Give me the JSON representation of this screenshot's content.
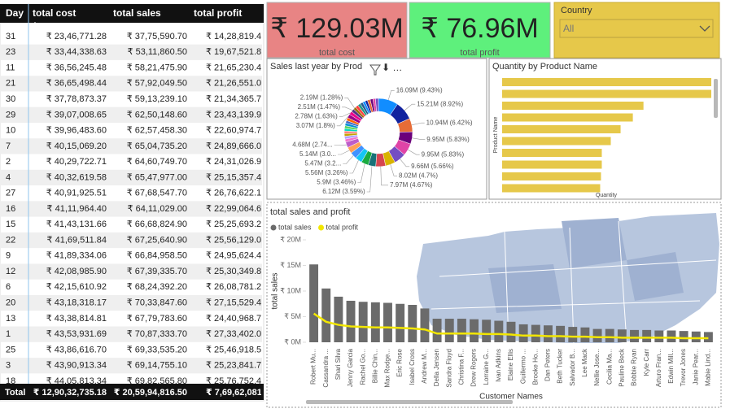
{
  "table": {
    "columns": [
      "Day",
      "total cost",
      "total sales",
      "total profit"
    ],
    "rows": [
      [
        31,
        "₹ 23,46,771.28",
        "₹ 37,75,590.70",
        "₹ 14,28,819.4"
      ],
      [
        23,
        "₹ 33,44,338.63",
        "₹ 53,11,860.50",
        "₹ 19,67,521.8"
      ],
      [
        11,
        "₹ 36,56,245.48",
        "₹ 58,21,475.90",
        "₹ 21,65,230.4"
      ],
      [
        21,
        "₹ 36,65,498.44",
        "₹ 57,92,049.50",
        "₹ 21,26,551.0"
      ],
      [
        30,
        "₹ 37,78,873.37",
        "₹ 59,13,239.10",
        "₹ 21,34,365.7"
      ],
      [
        29,
        "₹ 39,07,008.65",
        "₹ 62,50,148.60",
        "₹ 23,43,139.9"
      ],
      [
        10,
        "₹ 39,96,483.60",
        "₹ 62,57,458.30",
        "₹ 22,60,974.7"
      ],
      [
        7,
        "₹ 40,15,069.20",
        "₹ 65,04,735.20",
        "₹ 24,89,666.0"
      ],
      [
        2,
        "₹ 40,29,722.71",
        "₹ 64,60,749.70",
        "₹ 24,31,026.9"
      ],
      [
        4,
        "₹ 40,32,619.58",
        "₹ 65,47,977.00",
        "₹ 25,15,357.4"
      ],
      [
        27,
        "₹ 40,91,925.51",
        "₹ 67,68,547.70",
        "₹ 26,76,622.1"
      ],
      [
        16,
        "₹ 41,11,964.40",
        "₹ 64,11,029.00",
        "₹ 22,99,064.6"
      ],
      [
        15,
        "₹ 41,43,131.66",
        "₹ 66,68,824.90",
        "₹ 25,25,693.2"
      ],
      [
        22,
        "₹ 41,69,511.84",
        "₹ 67,25,640.90",
        "₹ 25,56,129.0"
      ],
      [
        9,
        "₹ 41,89,334.06",
        "₹ 66,84,958.50",
        "₹ 24,95,624.4"
      ],
      [
        12,
        "₹ 42,08,985.90",
        "₹ 67,39,335.70",
        "₹ 25,30,349.8"
      ],
      [
        6,
        "₹ 42,15,610.92",
        "₹ 68,24,392.20",
        "₹ 26,08,781.2"
      ],
      [
        20,
        "₹ 43,18,318.17",
        "₹ 70,33,847.60",
        "₹ 27,15,529.4"
      ],
      [
        13,
        "₹ 43,38,814.81",
        "₹ 67,79,783.60",
        "₹ 24,40,968.7"
      ],
      [
        1,
        "₹ 43,53,931.69",
        "₹ 70,87,333.70",
        "₹ 27,33,402.0"
      ],
      [
        25,
        "₹ 43,86,616.70",
        "₹ 69,33,535.20",
        "₹ 25,46,918.5"
      ],
      [
        3,
        "₹ 43,90,913.34",
        "₹ 69,14,755.10",
        "₹ 25,23,841.7"
      ],
      [
        18,
        "₹ 44,05,813.34",
        "₹ 69,82,565.80",
        "₹ 25,76,752.4"
      ]
    ],
    "total": [
      "Total",
      "₹ 12,90,32,735.18",
      "₹ 20,59,94,816.50",
      "₹ 7,69,62,081.3"
    ]
  },
  "cards": [
    {
      "value": "₹ 129.03M",
      "label": "total cost",
      "color": "#e88484"
    },
    {
      "value": "₹ 76.96M",
      "label": "total profit",
      "color": "#5ef07c"
    }
  ],
  "slicer": {
    "title": "Country",
    "selected": "All"
  },
  "chart_data": [
    {
      "type": "donut",
      "title": "Sales last year by Prod",
      "values": [
        16.09,
        15.21,
        10.94,
        9.95,
        9.95,
        9.66,
        8.02,
        7.97,
        6.12,
        5.9,
        5.56,
        5.47,
        5.14,
        4.68,
        2.4,
        2.3,
        2.2,
        2.1,
        2.0,
        2.3,
        2.2,
        2.1,
        2.4,
        3.07,
        2.78,
        2.51,
        2.19,
        2.4,
        2.3,
        2.2,
        2.1,
        2.0,
        2.3,
        2.2,
        2.1,
        2.4
      ],
      "value_labels": [
        "16.09M (9.43%)",
        "15.21M (8.92%)",
        "10.94M (6.42%)",
        "9.95M (5.83%)",
        "9.95M (5.83%)",
        "9.66M (5.66%)",
        "8.02M (4.7%)",
        "7.97M (4.67%)",
        "6.12M (3.59%)",
        "5.9M (3.46%)",
        "5.56M (3.26%)",
        "5.47M (3.2...",
        "5.14M (3.0...",
        "4.68M (2.74...",
        null,
        null,
        null,
        null,
        null,
        null,
        null,
        null,
        null,
        "3.07M (1.8%)",
        "2.78M (1.63%)",
        "2.51M (1.47%)",
        "2.19M (1.28%)",
        null,
        null,
        null,
        null,
        null,
        null,
        null,
        null,
        null
      ],
      "colors": [
        "#118DFF",
        "#12239E",
        "#E66C37",
        "#6B007B",
        "#E044A7",
        "#744EC2",
        "#D9B300",
        "#D64550",
        "#197278",
        "#1AAB40",
        "#15C6F4",
        "#4092FF",
        "#FFA058",
        "#BE5DC9",
        "#F472D0",
        "#B5A1FF",
        "#C4A200",
        "#FF8080",
        "#00DBBC",
        "#5BD667",
        "#0091D5",
        "#4668C5",
        "#FF6300",
        "#99008A",
        "#EC008C",
        "#533285",
        "#99700A",
        "#FF4141",
        "#1F9A85",
        "#255A8F",
        "#118DFF",
        "#12239E",
        "#E66C37",
        "#6B007B",
        "#E044A7",
        "#744EC2"
      ]
    },
    {
      "type": "hbar",
      "title": "Quantity by Product Name",
      "x_label": "Quantity",
      "y_label": "Product Name",
      "categories": [
        null,
        null,
        null,
        null,
        null,
        null,
        null,
        null,
        null,
        null
      ],
      "values": [
        256,
        256,
        173,
        160,
        145,
        133,
        122,
        122,
        121,
        120
      ],
      "color": "#e6c84a",
      "xlim": [
        0,
        260
      ]
    },
    {
      "type": "combo",
      "title": "total sales and profit",
      "x_label": "Customer Names",
      "y_label": "total sales",
      "categories": [
        "Robert Mu...",
        "Cassandra ...",
        "Shari Silva",
        "Jenny Garcia",
        "Rachel Go...",
        "Billie Chin...",
        "Max Rodge...",
        "Eric Rose",
        "Isabel Cross",
        "Andrew M...",
        "Della Jensen",
        "Sandra Floyd",
        "Christina F...",
        "Drew Rogers",
        "Lorraine G...",
        "Ivan Adkins",
        "Elaine Ellis",
        "Guillermo ...",
        "Brooke Ho...",
        "Dan Peters",
        "Beth Tucker",
        "Salvador B...",
        "Lee Mack",
        "Nellie Jose...",
        "Cecilia Ma...",
        "Pauline Beck",
        "Bobbie Ryan",
        "Kyle Carr",
        "Arturo Fran...",
        "Edwin Mill...",
        "Trevor Jones",
        "Janie Pear...",
        "Mabie Lind..."
      ],
      "series": [
        {
          "name": "total sales",
          "kind": "bar",
          "color": "#6b6b6b",
          "values": [
            15200000,
            10500000,
            8900000,
            8100000,
            7900000,
            7800000,
            7700000,
            7500000,
            7300000,
            6600000,
            4600000,
            4600000,
            4600000,
            4500000,
            4400000,
            4200000,
            4000000,
            3500000,
            3400000,
            3300000,
            3200000,
            3000000,
            2900000,
            2600000,
            2600000,
            2500000,
            2400000,
            2400000,
            2300000,
            2300000,
            2200000,
            2100000,
            2000000
          ]
        },
        {
          "name": "total profit",
          "kind": "line",
          "color": "#f2e600",
          "values": [
            5600000,
            4000000,
            3400000,
            3100000,
            3000000,
            2900000,
            2900000,
            2800000,
            2700000,
            2500000,
            1700000,
            1700000,
            1700000,
            1700000,
            1600000,
            1600000,
            1500000,
            1300000,
            1300000,
            1200000,
            1200000,
            1100000,
            1100000,
            1000000,
            1000000,
            900000,
            900000,
            900000,
            900000,
            900000,
            800000,
            800000,
            800000
          ]
        }
      ],
      "ylim": [
        0,
        20000000
      ],
      "yticks": [
        {
          "value": 0,
          "label": "₹ 0M"
        },
        {
          "value": 5000000,
          "label": "₹ 5M"
        },
        {
          "value": 10000000,
          "label": "₹ 10M"
        },
        {
          "value": 15000000,
          "label": "₹ 15M"
        },
        {
          "value": 20000000,
          "label": "₹ 20M"
        }
      ]
    }
  ]
}
